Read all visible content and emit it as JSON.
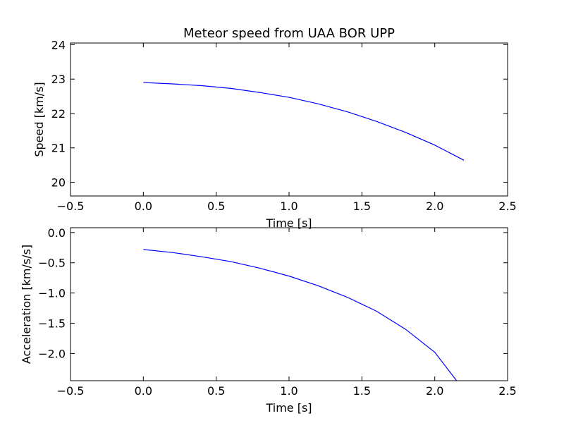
{
  "chart_data": [
    {
      "type": "line",
      "title": "Meteor speed from  UAA BOR UPP",
      "xlabel": "Time [s]",
      "ylabel": "Speed [km/s]",
      "xlim": [
        -0.5,
        2.5
      ],
      "ylim": [
        19.6,
        24.05
      ],
      "xticks": [
        -0.5,
        0.0,
        0.5,
        1.0,
        1.5,
        2.0,
        2.5
      ],
      "xtick_labels": [
        "−0.5",
        "0.0",
        "0.5",
        "1.0",
        "1.5",
        "2.0",
        "2.5"
      ],
      "yticks": [
        20,
        21,
        22,
        23,
        24
      ],
      "ytick_labels": [
        "20",
        "21",
        "22",
        "23",
        "24"
      ],
      "grid": false,
      "series": [
        {
          "color": "#0000ff",
          "x": [
            0.0,
            0.2,
            0.4,
            0.6,
            0.8,
            1.0,
            1.2,
            1.4,
            1.6,
            1.8,
            2.0,
            2.2
          ],
          "y": [
            22.9,
            22.86,
            22.81,
            22.73,
            22.61,
            22.47,
            22.28,
            22.05,
            21.77,
            21.45,
            21.08,
            20.64
          ]
        }
      ]
    },
    {
      "type": "line",
      "title": "",
      "xlabel": "Time [s]",
      "ylabel": "Acceleration [km/s/s]",
      "xlim": [
        -0.5,
        2.5
      ],
      "ylim": [
        -2.45,
        0.08
      ],
      "xticks": [
        -0.5,
        0.0,
        0.5,
        1.0,
        1.5,
        2.0,
        2.5
      ],
      "xtick_labels": [
        "−0.5",
        "0.0",
        "0.5",
        "1.0",
        "1.5",
        "2.0",
        "2.5"
      ],
      "yticks": [
        0.0,
        -0.5,
        -1.0,
        -1.5,
        -2.0
      ],
      "ytick_labels": [
        "0.0",
        "−0.5",
        "−1.0",
        "−1.5",
        "−2.0"
      ],
      "grid": false,
      "series": [
        {
          "color": "#0000ff",
          "x": [
            0.0,
            0.2,
            0.4,
            0.6,
            0.8,
            1.0,
            1.2,
            1.4,
            1.6,
            1.8,
            2.0,
            2.15
          ],
          "y": [
            -0.28,
            -0.33,
            -0.4,
            -0.48,
            -0.59,
            -0.72,
            -0.88,
            -1.07,
            -1.3,
            -1.6,
            -1.98,
            -2.45
          ]
        }
      ]
    }
  ]
}
